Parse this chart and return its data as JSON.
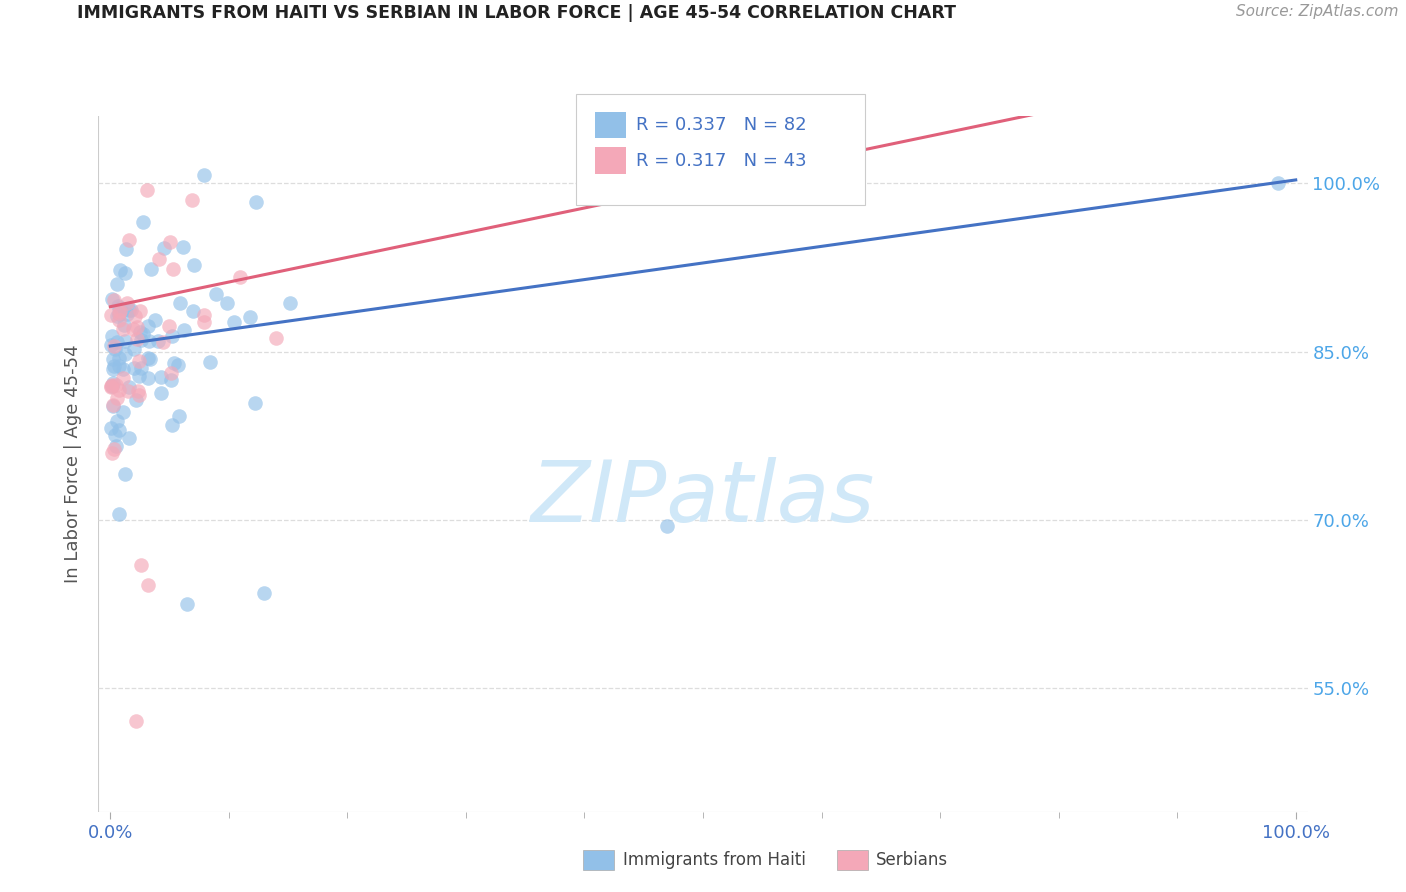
{
  "title": "IMMIGRANTS FROM HAITI VS SERBIAN IN LABOR FORCE | AGE 45-54 CORRELATION CHART",
  "source": "Source: ZipAtlas.com",
  "ylabel": "In Labor Force | Age 45-54",
  "y_tick_vals": [
    0.55,
    0.7,
    0.85,
    1.0
  ],
  "y_tick_labels": [
    "55.0%",
    "70.0%",
    "85.0%",
    "100.0%"
  ],
  "x_tick_labels": [
    "0.0%",
    "100.0%"
  ],
  "haiti_color": "#92c0e8",
  "serbian_color": "#f4a8b8",
  "haiti_line_color": "#4472c4",
  "serbian_line_color": "#e0607a",
  "R_haiti": 0.337,
  "N_haiti": 82,
  "R_serbian": 0.317,
  "N_serbian": 43,
  "legend_text_color": "#4472c4",
  "right_tick_color": "#4da6e8",
  "watermark_color": "#d0e8f8",
  "grid_color": "#dddddd",
  "title_color": "#222222",
  "source_color": "#999999",
  "axis_label_color": "#555555",
  "bottom_label_color": "#4472c4",
  "ylim_low": 0.44,
  "ylim_high": 1.06
}
